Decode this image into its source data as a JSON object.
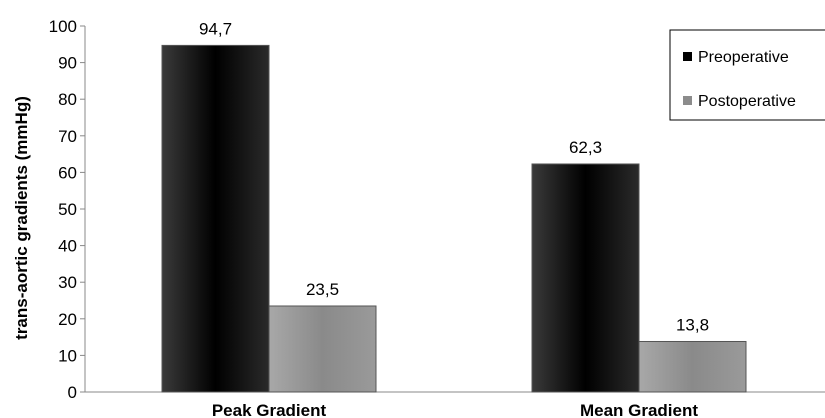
{
  "chart_data": {
    "type": "bar",
    "categories": [
      "Peak Gradient",
      "Mean Gradient"
    ],
    "series": [
      {
        "name": "Preoperative",
        "values": [
          94.7,
          62.3
        ],
        "labels": [
          "94,7",
          "62,3"
        ],
        "color": "#000000"
      },
      {
        "name": "Postoperative",
        "values": [
          23.5,
          13.8
        ],
        "labels": [
          "23,5",
          "13,8"
        ],
        "color": "#8c8c8c"
      }
    ],
    "ylabel": "trans-aortic  gradients (mmHg)",
    "ylim": [
      0,
      100
    ],
    "yticks": [
      "0",
      "10",
      "20",
      "30",
      "40",
      "50",
      "60",
      "70",
      "80",
      "90",
      "100"
    ],
    "grid": false,
    "legend_position": "top-right"
  }
}
